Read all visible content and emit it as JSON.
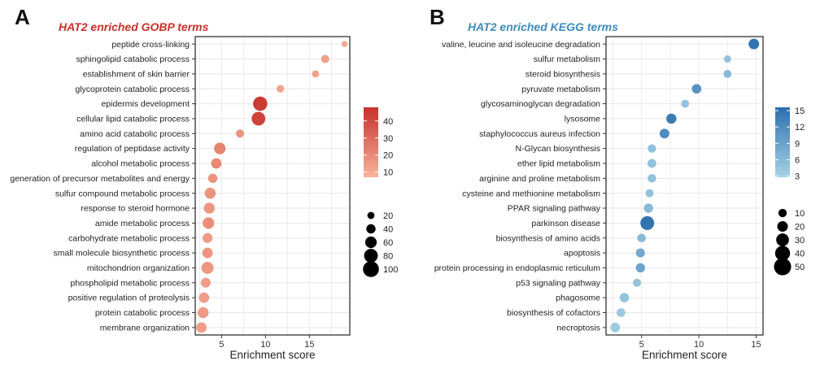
{
  "chart_data": [
    {
      "type": "scatter",
      "panel": "A",
      "title": "HAT2 enriched GOBP terms",
      "title_color": "#c9302c",
      "xlabel": "Enrichment score",
      "xlim": [
        2,
        19.6
      ],
      "xticks": [
        5,
        10,
        15
      ],
      "categories": [
        "peptide cross-linking",
        "sphingolipid catabolic process",
        "establishment of skin barrier",
        "glycoprotein catabolic process",
        "epidermis development",
        "cellular lipid catabolic process",
        "amino acid catabolic process",
        "regulation of peptidase activity",
        "alcohol metabolic process",
        "generation of precursor metabolites and energy",
        "sulfur compound metabolic process",
        "response to steroid hormone",
        "amide metabolic process",
        "carbohydrate metabolic process",
        "small molecule biosynthetic process",
        "mitochondrion organization",
        "phospholipid metabolic process",
        "positive regulation of proteolysis",
        "protein catabolic process",
        "membrane organization"
      ],
      "enrichment": [
        19,
        16.8,
        15.7,
        11.7,
        9.4,
        9.2,
        7.1,
        4.8,
        4.4,
        4.0,
        3.7,
        3.6,
        3.5,
        3.4,
        3.4,
        3.4,
        3.2,
        3.0,
        2.9,
        2.7
      ],
      "count": [
        12,
        30,
        22,
        25,
        85,
        80,
        30,
        60,
        50,
        40,
        55,
        55,
        60,
        45,
        50,
        65,
        45,
        50,
        55,
        50
      ],
      "color_value": [
        10,
        13,
        13,
        12,
        45,
        42,
        17,
        22,
        20,
        17,
        17,
        16,
        19,
        15,
        16,
        16,
        14,
        14,
        15,
        14
      ],
      "colorbar": {
        "min": 7,
        "max": 48,
        "ticks": [
          10,
          20,
          30,
          40
        ],
        "low_color": "#f7b49b",
        "high_color": "#c9302c"
      },
      "size_legend": [
        20,
        40,
        60,
        80,
        100
      ]
    },
    {
      "type": "scatter",
      "panel": "B",
      "title": "HAT2 enriched KEGG terms",
      "title_color": "#3d8bbd",
      "xlabel": "Enrichment score",
      "xlim": [
        1.9,
        15.6
      ],
      "xticks": [
        5,
        10,
        15
      ],
      "categories": [
        "valine, leucine and isoleucine degradation",
        "sulfur metabolism",
        "steroid biosynthesis",
        "pyruvate metabolism",
        "glycosaminoglycan degradation",
        "lysosome",
        "staphylococcus aureus infection",
        "N-Glycan biosynthesis",
        "ether lipid metabolism",
        "arginine and proline metabolism",
        "cysteine and methionine metabolism",
        "PPAR signaling pathway",
        "parkinson disease",
        "biosynthesis of amino acids",
        "apoptosis",
        "protein processing in endoplasmic reticulum",
        "p53 signaling pathway",
        "phagosome",
        "biosynthesis of cofactors",
        "necroptosis"
      ],
      "enrichment": [
        14.8,
        12.5,
        12.5,
        9.8,
        8.8,
        7.6,
        7.0,
        5.9,
        5.9,
        5.9,
        5.7,
        5.6,
        5.5,
        5.0,
        4.9,
        4.9,
        4.6,
        3.5,
        3.2,
        2.7
      ],
      "count": [
        20,
        5,
        8,
        15,
        8,
        18,
        16,
        10,
        12,
        10,
        9,
        14,
        35,
        11,
        13,
        14,
        9,
        14,
        12,
        16
      ],
      "color_value": [
        15,
        5,
        6,
        11,
        5,
        14,
        12,
        5,
        5,
        5,
        5,
        6,
        15,
        6,
        8,
        9,
        5,
        5,
        4,
        4
      ],
      "colorbar": {
        "min": 2.8,
        "max": 15.6,
        "ticks": [
          3,
          6,
          9,
          12,
          15
        ],
        "low_color": "#a8d3e6",
        "high_color": "#2b6fae"
      },
      "size_legend": [
        10,
        20,
        30,
        40,
        50
      ]
    }
  ]
}
